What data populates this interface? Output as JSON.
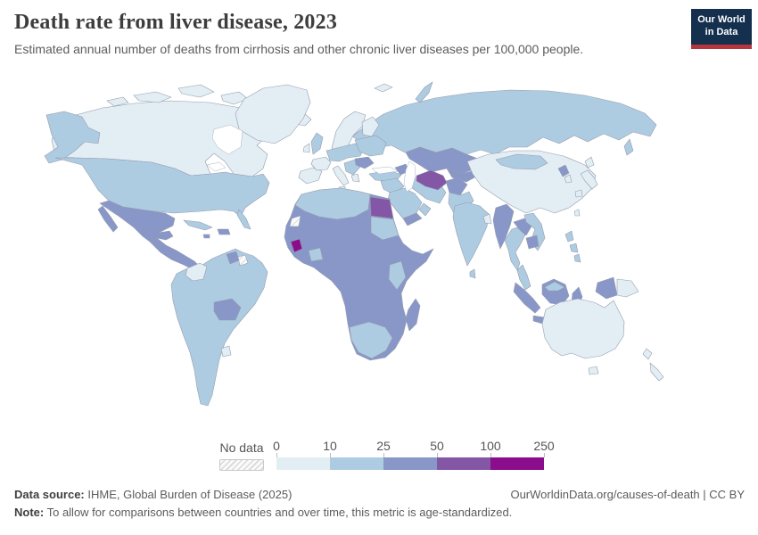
{
  "header": {
    "title": "Death rate from liver disease, 2023",
    "subtitle": "Estimated annual number of deaths from cirrhosis and other chronic liver diseases per 100,000 people.",
    "logo_line1": "Our World",
    "logo_line2": "in Data",
    "logo_colors": {
      "background": "#14304e",
      "underline": "#b7363e"
    }
  },
  "legend": {
    "no_data_label": "No data",
    "ticks": [
      "0",
      "10",
      "25",
      "50",
      "100",
      "250"
    ]
  },
  "footer": {
    "source_label": "Data source:",
    "source_text": " IHME, Global Burden of Disease (2025)",
    "link_text": "OurWorldinData.org/causes-of-death | CC BY",
    "note_label": "Note:",
    "note_text": " To allow for comparisons between countries and over time, this metric is age-standardized."
  },
  "chart_data": {
    "type": "choropleth_map",
    "title": "Death rate from liver disease, 2023",
    "unit": "deaths per 100,000 people (age-standardized)",
    "year": "2023",
    "legend_position": "bottom",
    "bins": [
      {
        "label": "0-10",
        "color": "#e2eef4"
      },
      {
        "label": "10-25",
        "color": "#aecce1"
      },
      {
        "label": "25-50",
        "color": "#8897c8"
      },
      {
        "label": "50-100",
        "color": "#8456a6"
      },
      {
        "label": "100-250",
        "color": "#8a0e8b"
      },
      {
        "label": "No data",
        "color": "hatch"
      }
    ],
    "regions": [
      {
        "name": "Canada",
        "bin": "0-10"
      },
      {
        "name": "Greenland",
        "bin": "0-10"
      },
      {
        "name": "United States",
        "bin": "10-25"
      },
      {
        "name": "Mexico",
        "bin": "25-50"
      },
      {
        "name": "Central America",
        "bin": "25-50"
      },
      {
        "name": "Cuba",
        "bin": "10-25"
      },
      {
        "name": "Caribbean islands",
        "bin": "25-50"
      },
      {
        "name": "South America (most)",
        "bin": "10-25"
      },
      {
        "name": "Colombia",
        "bin": "0-10"
      },
      {
        "name": "Guyana and Suriname",
        "bin": "25-50"
      },
      {
        "name": "French Guiana",
        "bin": "No data"
      },
      {
        "name": "Bolivia",
        "bin": "25-50"
      },
      {
        "name": "Uruguay",
        "bin": "0-10"
      },
      {
        "name": "Iceland",
        "bin": "0-10"
      },
      {
        "name": "Scandinavia",
        "bin": "0-10"
      },
      {
        "name": "Finland",
        "bin": "0-10"
      },
      {
        "name": "United Kingdom",
        "bin": "10-25"
      },
      {
        "name": "Ireland",
        "bin": "0-10"
      },
      {
        "name": "Spain and Portugal",
        "bin": "0-10"
      },
      {
        "name": "France",
        "bin": "0-10"
      },
      {
        "name": "Italy",
        "bin": "0-10"
      },
      {
        "name": "Greece",
        "bin": "0-10"
      },
      {
        "name": "Central Europe",
        "bin": "10-25"
      },
      {
        "name": "Eastern Europe",
        "bin": "10-25"
      },
      {
        "name": "Balkans",
        "bin": "10-25"
      },
      {
        "name": "Romania",
        "bin": "25-50"
      },
      {
        "name": "Russia",
        "bin": "10-25"
      },
      {
        "name": "Kazakhstan and Central Asia",
        "bin": "25-50"
      },
      {
        "name": "Turkmenistan",
        "bin": "50-100"
      },
      {
        "name": "Turkey",
        "bin": "10-25"
      },
      {
        "name": "Iraq and Levant",
        "bin": "10-25"
      },
      {
        "name": "Saudi Arabia",
        "bin": "10-25"
      },
      {
        "name": "Yemen",
        "bin": "25-50"
      },
      {
        "name": "Oman",
        "bin": "10-25"
      },
      {
        "name": "Iran",
        "bin": "10-25"
      },
      {
        "name": "Afghanistan",
        "bin": "25-50"
      },
      {
        "name": "Pakistan",
        "bin": "10-25"
      },
      {
        "name": "India",
        "bin": "10-25"
      },
      {
        "name": "Bangladesh",
        "bin": "0-10"
      },
      {
        "name": "Sri Lanka",
        "bin": "10-25"
      },
      {
        "name": "China",
        "bin": "0-10"
      },
      {
        "name": "Mongolia",
        "bin": "10-25"
      },
      {
        "name": "North Korea",
        "bin": "25-50"
      },
      {
        "name": "South Korea",
        "bin": "0-10"
      },
      {
        "name": "Japan",
        "bin": "0-10"
      },
      {
        "name": "Taiwan",
        "bin": "0-10"
      },
      {
        "name": "Myanmar",
        "bin": "25-50"
      },
      {
        "name": "Thailand",
        "bin": "10-25"
      },
      {
        "name": "Laos",
        "bin": "25-50"
      },
      {
        "name": "Vietnam",
        "bin": "10-25"
      },
      {
        "name": "Cambodia",
        "bin": "25-50"
      },
      {
        "name": "Malaysia",
        "bin": "10-25"
      },
      {
        "name": "Indonesia",
        "bin": "25-50"
      },
      {
        "name": "Philippines",
        "bin": "10-25"
      },
      {
        "name": "Papua New Guinea",
        "bin": "0-10"
      },
      {
        "name": "Australia",
        "bin": "0-10"
      },
      {
        "name": "New Zealand",
        "bin": "0-10"
      },
      {
        "name": "North Africa",
        "bin": "10-25"
      },
      {
        "name": "Egypt",
        "bin": "50-100"
      },
      {
        "name": "Sudan",
        "bin": "10-25"
      },
      {
        "name": "Western Sahara",
        "bin": "No data"
      },
      {
        "name": "Sub-Saharan Africa (most)",
        "bin": "25-50"
      },
      {
        "name": "Côte d'Ivoire and Ghana",
        "bin": "10-25"
      },
      {
        "name": "Sierra Leone",
        "bin": "100-250"
      },
      {
        "name": "Kenya and Tanzania",
        "bin": "10-25"
      },
      {
        "name": "Southern Africa",
        "bin": "10-25"
      },
      {
        "name": "Madagascar",
        "bin": "25-50"
      }
    ]
  }
}
